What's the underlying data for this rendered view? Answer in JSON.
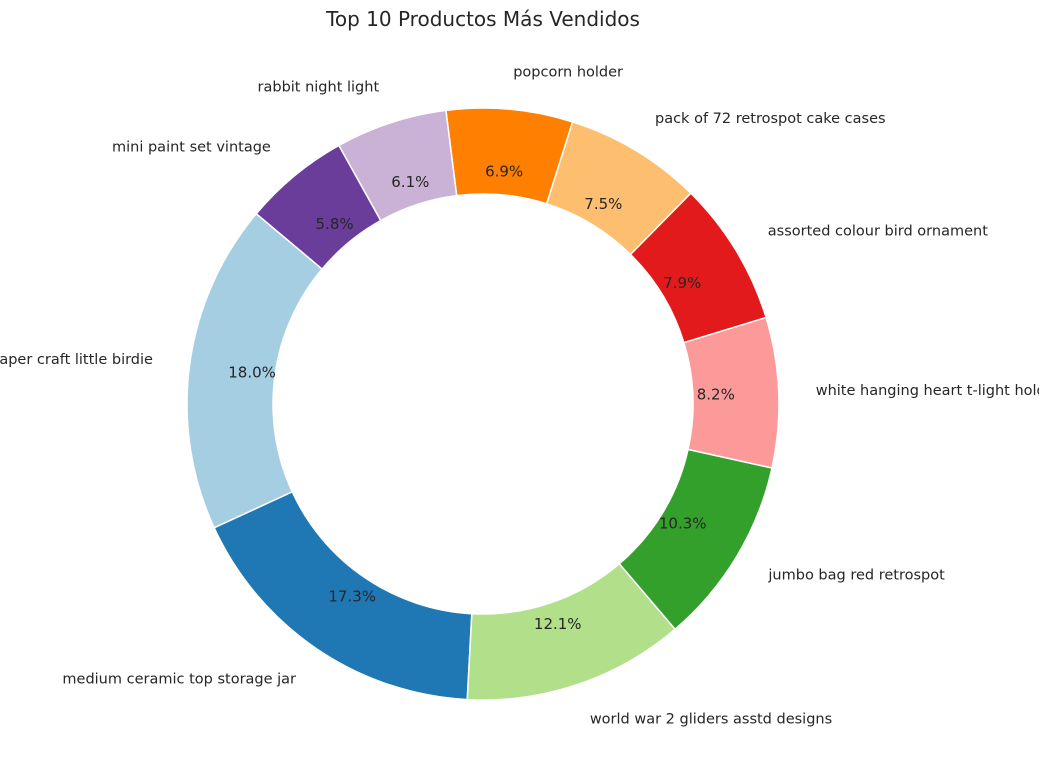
{
  "chart_data": {
    "type": "pie",
    "style": "donut",
    "title": "Top 10 Productos Más Vendidos",
    "start_angle_deg": 140,
    "direction": "counterclockwise",
    "slices": [
      {
        "label": "paper craft  little birdie",
        "value": 18.0,
        "pct_label": "18.0%",
        "color": "#a6cee3"
      },
      {
        "label": "medium ceramic top storage jar",
        "value": 17.3,
        "pct_label": "17.3%",
        "color": "#1f78b4"
      },
      {
        "label": "world war 2 gliders asstd designs",
        "value": 12.1,
        "pct_label": "12.1%",
        "color": "#b2df8a"
      },
      {
        "label": "jumbo bag red retrospot",
        "value": 10.3,
        "pct_label": "10.3%",
        "color": "#33a02c"
      },
      {
        "label": "white hanging heart t-light holder",
        "value": 8.2,
        "pct_label": "8.2%",
        "color": "#fb9a99"
      },
      {
        "label": "assorted colour bird ornament",
        "value": 7.9,
        "pct_label": "7.9%",
        "color": "#e31a1c"
      },
      {
        "label": "pack of 72 retrospot cake cases",
        "value": 7.5,
        "pct_label": "7.5%",
        "color": "#fdbf6f"
      },
      {
        "label": "popcorn holder",
        "value": 6.9,
        "pct_label": "6.9%",
        "color": "#ff7f00"
      },
      {
        "label": "rabbit night light",
        "value": 6.1,
        "pct_label": "6.1%",
        "color": "#cab2d6"
      },
      {
        "label": "mini paint set vintage",
        "value": 5.8,
        "pct_label": "5.8%",
        "color": "#6a3d9a"
      }
    ]
  }
}
